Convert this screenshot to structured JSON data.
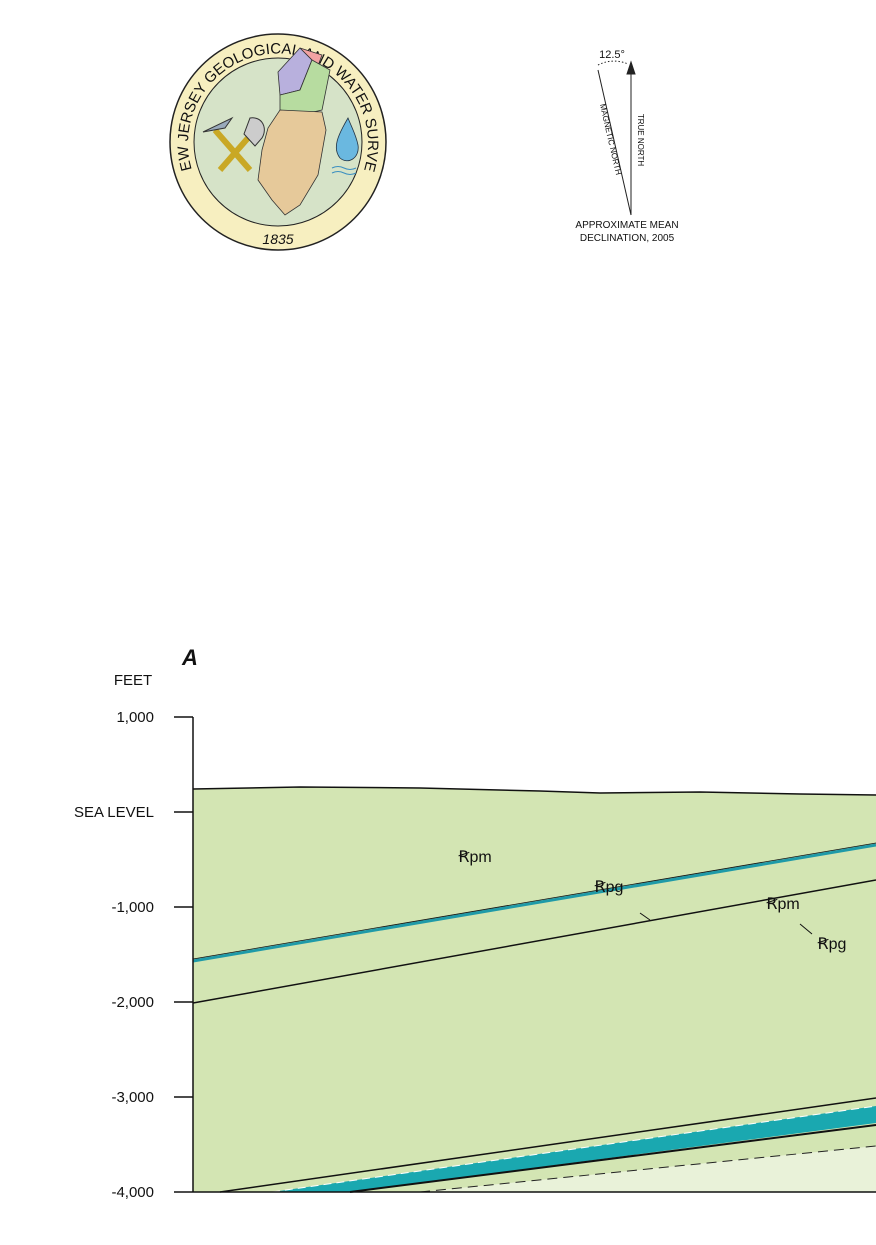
{
  "seal": {
    "ring_text": "NEW JERSEY GEOLOGICAL AND WATER SURVEY",
    "year": "1835"
  },
  "declination": {
    "angle": "12.5°",
    "magnetic_label": "MAGNETIC NORTH",
    "true_label": "TRUE NORTH",
    "caption": [
      "APPROXIMATE MEAN",
      "DECLINATION, 2005"
    ]
  },
  "cross_section": {
    "section_letter": "A",
    "axis_title": "FEET",
    "ylim": [
      -4000,
      1000
    ],
    "yticks": [
      {
        "value": 1000,
        "label": "1,000"
      },
      {
        "value": 0,
        "label": "SEA LEVEL"
      },
      {
        "value": -1000,
        "label": "-1,000"
      },
      {
        "value": -2000,
        "label": "-2,000"
      },
      {
        "value": -3000,
        "label": "-3,000"
      },
      {
        "value": -4000,
        "label": "-4,000"
      }
    ],
    "unit_labels": [
      "Ꞧpm",
      "Ꞧpg",
      "Ꞧpm",
      "Ꞧpg"
    ]
  }
}
